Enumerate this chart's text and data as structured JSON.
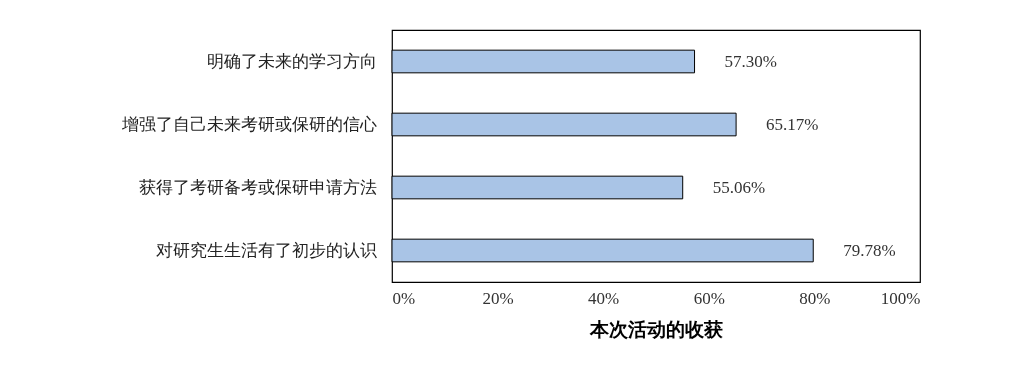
{
  "chart_data": {
    "type": "bar",
    "orientation": "horizontal",
    "xlabel": "本次活动的收获",
    "categories": [
      "明确了未来的学习方向",
      "增强了自己未来考研或保研的信心",
      "获得了考研备考或保研申请方法",
      "对研究生生活有了初步的认识"
    ],
    "values": [
      57.3,
      65.17,
      55.06,
      79.78
    ],
    "value_labels": [
      "57.30%",
      "65.17%",
      "55.06%",
      "79.78%"
    ],
    "color": "#a9c4e6",
    "xlim": [
      0,
      100
    ],
    "xticks": [
      {
        "value": 0,
        "label": "0%"
      },
      {
        "value": 20,
        "label": "20%"
      },
      {
        "value": 40,
        "label": "40%"
      },
      {
        "value": 60,
        "label": "60%"
      },
      {
        "value": 80,
        "label": "80%"
      },
      {
        "value": 100,
        "label": "100%"
      }
    ]
  }
}
